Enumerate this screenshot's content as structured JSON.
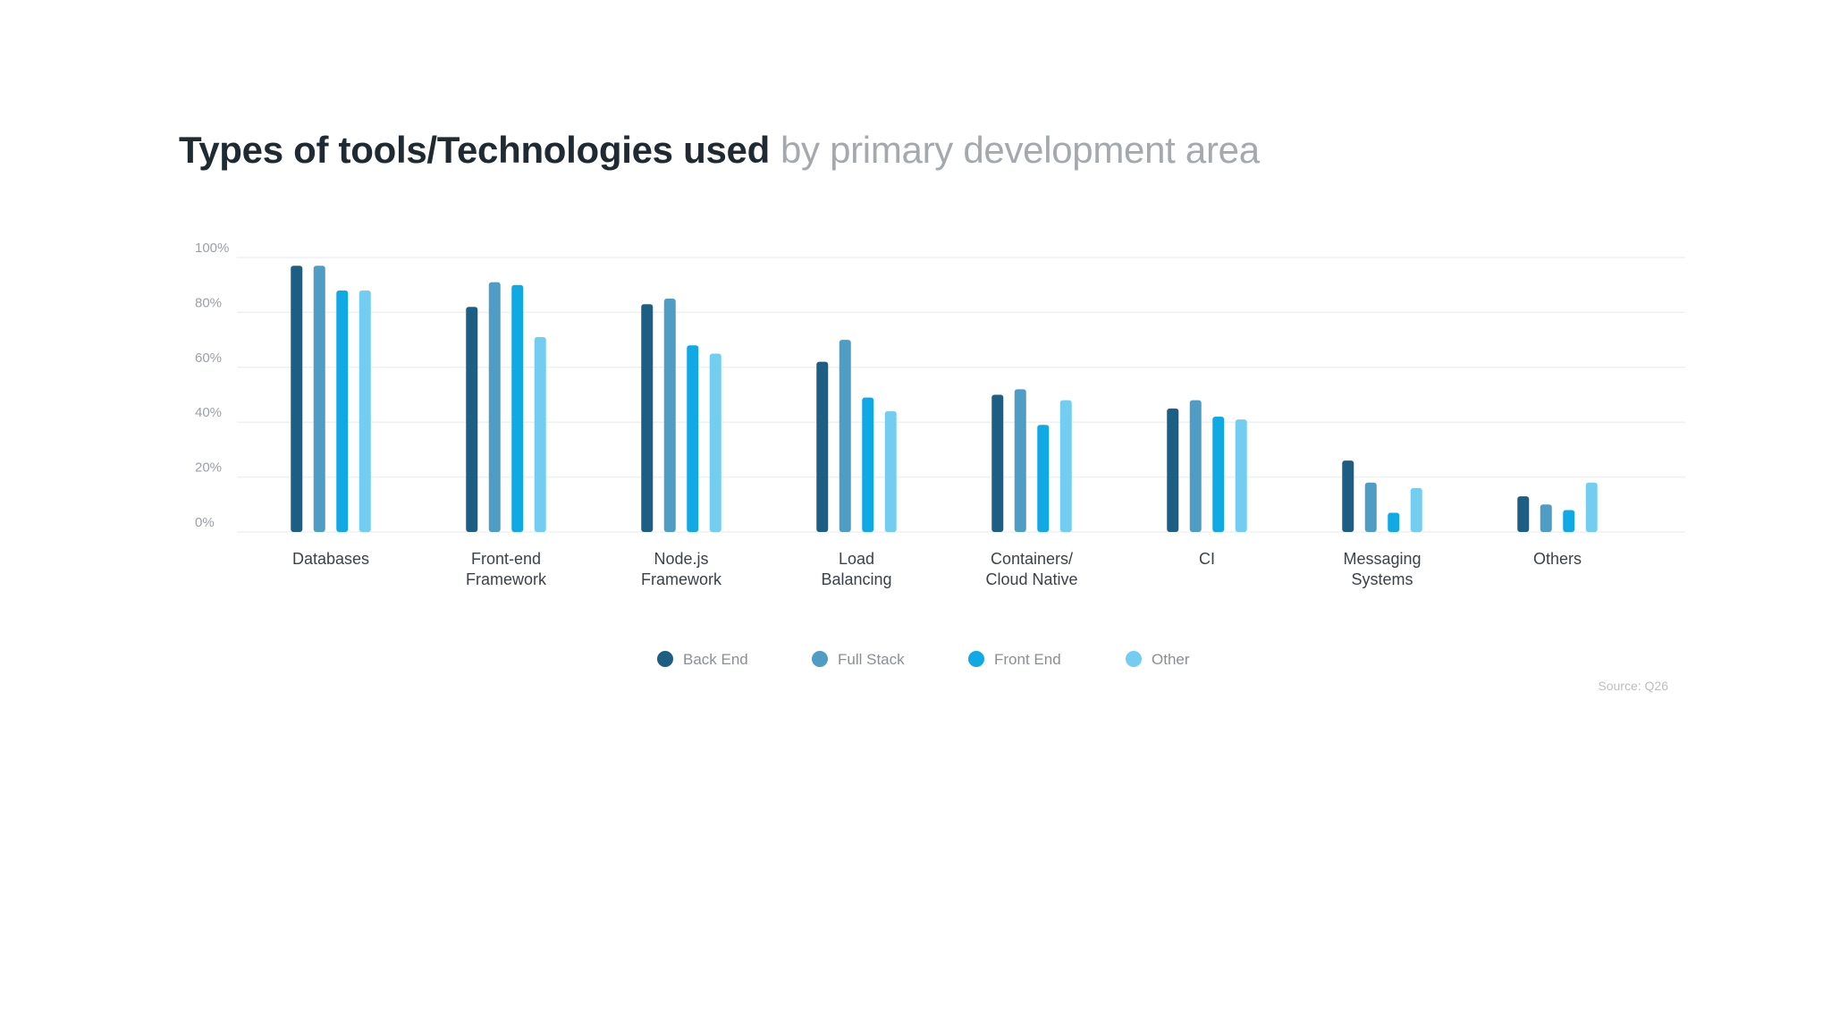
{
  "chart_data": {
    "type": "bar",
    "title": "Types of tools/Technologies used",
    "subtitle": "by primary development area",
    "xlabel": "",
    "ylabel": "",
    "ylim": [
      0,
      100
    ],
    "y_ticks": [
      "0%",
      "20%",
      "40%",
      "60%",
      "80%",
      "100%"
    ],
    "y_tick_values": [
      0,
      20,
      40,
      60,
      80,
      100
    ],
    "grid": true,
    "legend_position": "bottom-center",
    "categories": [
      [
        "Databases"
      ],
      [
        "Front-end",
        "Framework"
      ],
      [
        "Node.js",
        "Framework"
      ],
      [
        "Load",
        "Balancing"
      ],
      [
        "Containers/",
        "Cloud Native"
      ],
      [
        "CI"
      ],
      [
        "Messaging",
        "Systems"
      ],
      [
        "Others"
      ]
    ],
    "series": [
      {
        "name": "Back End",
        "color": "#1d5f84",
        "values": [
          97,
          82,
          83,
          62,
          50,
          45,
          26,
          13
        ]
      },
      {
        "name": "Full Stack",
        "color": "#4f9cc4",
        "values": [
          97,
          91,
          85,
          70,
          52,
          48,
          18,
          10
        ]
      },
      {
        "name": "Front End",
        "color": "#10a9e5",
        "values": [
          88,
          90,
          68,
          49,
          39,
          42,
          7,
          8
        ]
      },
      {
        "name": "Other",
        "color": "#73cdf0",
        "values": [
          88,
          71,
          65,
          44,
          48,
          41,
          16,
          18
        ]
      }
    ],
    "source": "Source: Q26"
  }
}
